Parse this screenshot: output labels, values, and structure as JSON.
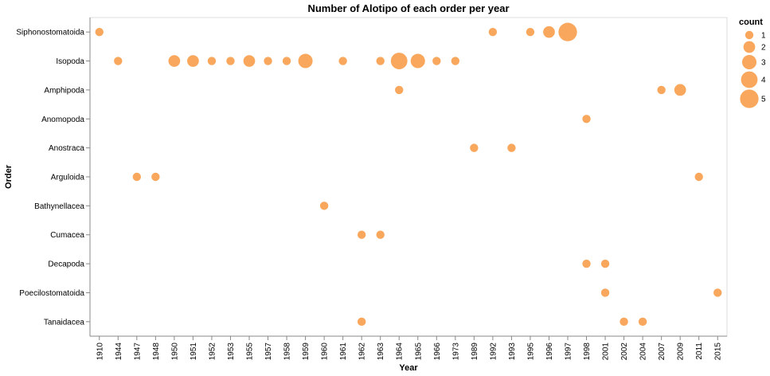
{
  "chart_data": {
    "type": "scatter",
    "title": "Number of Alotipo of each order per year",
    "xlabel": "Year",
    "ylabel": "Order",
    "x_categories": [
      "1910",
      "1944",
      "1947",
      "1948",
      "1950",
      "1951",
      "1952",
      "1953",
      "1955",
      "1957",
      "1958",
      "1959",
      "1960",
      "1961",
      "1962",
      "1963",
      "1964",
      "1965",
      "1966",
      "1973",
      "1989",
      "1992",
      "1993",
      "1995",
      "1996",
      "1997",
      "1998",
      "2001",
      "2002",
      "2004",
      "2007",
      "2009",
      "2011",
      "2015"
    ],
    "y_categories": [
      "Siphonostomatoida",
      "Isopoda",
      "Amphipoda",
      "Anomopoda",
      "Anostraca",
      "Arguloida",
      "Bathynellacea",
      "Cumacea",
      "Decapoda",
      "Poecilostomatoida",
      "Tanaidacea"
    ],
    "color": "#F8A75C",
    "legend": {
      "title": "count",
      "placement": "top-right",
      "values": [
        1,
        2,
        3,
        4,
        5
      ]
    },
    "points": [
      {
        "x": "1910",
        "y": "Siphonostomatoida",
        "count": 1
      },
      {
        "x": "1992",
        "y": "Siphonostomatoida",
        "count": 1
      },
      {
        "x": "1995",
        "y": "Siphonostomatoida",
        "count": 1
      },
      {
        "x": "1996",
        "y": "Siphonostomatoida",
        "count": 2
      },
      {
        "x": "1997",
        "y": "Siphonostomatoida",
        "count": 5
      },
      {
        "x": "1944",
        "y": "Isopoda",
        "count": 1
      },
      {
        "x": "1950",
        "y": "Isopoda",
        "count": 2
      },
      {
        "x": "1951",
        "y": "Isopoda",
        "count": 2
      },
      {
        "x": "1952",
        "y": "Isopoda",
        "count": 1
      },
      {
        "x": "1953",
        "y": "Isopoda",
        "count": 1
      },
      {
        "x": "1955",
        "y": "Isopoda",
        "count": 2
      },
      {
        "x": "1957",
        "y": "Isopoda",
        "count": 1
      },
      {
        "x": "1958",
        "y": "Isopoda",
        "count": 1
      },
      {
        "x": "1959",
        "y": "Isopoda",
        "count": 3
      },
      {
        "x": "1961",
        "y": "Isopoda",
        "count": 1
      },
      {
        "x": "1963",
        "y": "Isopoda",
        "count": 1
      },
      {
        "x": "1964",
        "y": "Isopoda",
        "count": 4
      },
      {
        "x": "1965",
        "y": "Isopoda",
        "count": 3
      },
      {
        "x": "1966",
        "y": "Isopoda",
        "count": 1
      },
      {
        "x": "1973",
        "y": "Isopoda",
        "count": 1
      },
      {
        "x": "1964",
        "y": "Amphipoda",
        "count": 1
      },
      {
        "x": "2007",
        "y": "Amphipoda",
        "count": 1
      },
      {
        "x": "2009",
        "y": "Amphipoda",
        "count": 2
      },
      {
        "x": "1998",
        "y": "Anomopoda",
        "count": 1
      },
      {
        "x": "1989",
        "y": "Anostraca",
        "count": 1
      },
      {
        "x": "1993",
        "y": "Anostraca",
        "count": 1
      },
      {
        "x": "1947",
        "y": "Arguloida",
        "count": 1
      },
      {
        "x": "1948",
        "y": "Arguloida",
        "count": 1
      },
      {
        "x": "2011",
        "y": "Arguloida",
        "count": 1
      },
      {
        "x": "1960",
        "y": "Bathynellacea",
        "count": 1
      },
      {
        "x": "1962",
        "y": "Cumacea",
        "count": 1
      },
      {
        "x": "1963",
        "y": "Cumacea",
        "count": 1
      },
      {
        "x": "1998",
        "y": "Decapoda",
        "count": 1
      },
      {
        "x": "2001",
        "y": "Decapoda",
        "count": 1
      },
      {
        "x": "2001",
        "y": "Poecilostomatoida",
        "count": 1
      },
      {
        "x": "2015",
        "y": "Poecilostomatoida",
        "count": 1
      },
      {
        "x": "1962",
        "y": "Tanaidacea",
        "count": 1
      },
      {
        "x": "2002",
        "y": "Tanaidacea",
        "count": 1
      },
      {
        "x": "2004",
        "y": "Tanaidacea",
        "count": 1
      }
    ]
  }
}
